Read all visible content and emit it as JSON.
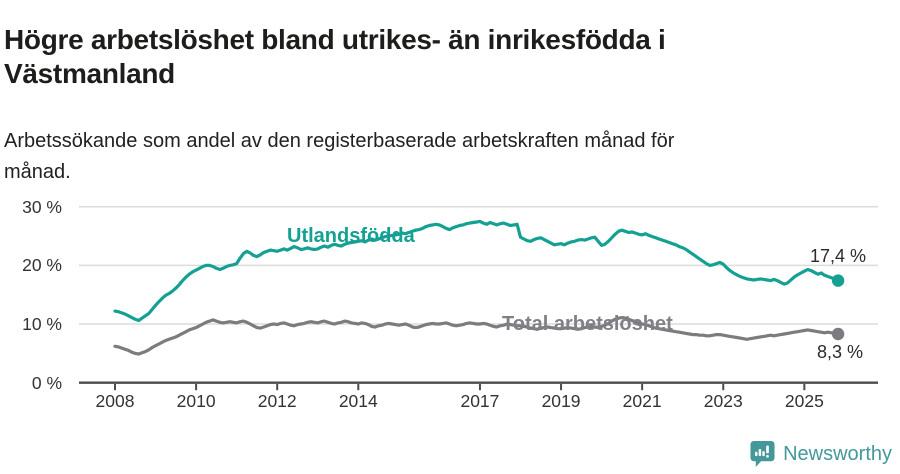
{
  "header": {
    "title_lines": [
      "Högre arbetslöshet bland utrikes- än inrikesfödda i",
      "Västmanland"
    ],
    "subtitle_lines": [
      "Arbetssökande som andel av den registerbaserade arbetskraften månad för",
      "månad."
    ]
  },
  "footer": {
    "brand": "Newsworthy",
    "brand_color": "#44989b"
  },
  "chart_data": {
    "type": "line",
    "title": "Högre arbetslöshet bland utrikes- än inrikesfödda i Västmanland",
    "subtitle": "Arbetssökande som andel av den registerbaserade arbetskraften månad för månad.",
    "unit": "%",
    "frequency": "monthly",
    "x_start_year": 2008,
    "x_start": "2008-01",
    "x_end": "2025-11",
    "ylim": [
      0,
      30
    ],
    "grid": "horizontal",
    "gridline_color": "#dcdcdc",
    "axis_color": "#4b4b4b",
    "y_gridlines": [
      10,
      20,
      30
    ],
    "y_ticks": [
      {
        "value": 30,
        "label": "30 %"
      },
      {
        "value": 20,
        "label": "20 %"
      },
      {
        "value": 10,
        "label": "10 %"
      },
      {
        "value": 0,
        "label": "0 %"
      }
    ],
    "x_ticks": [
      {
        "year": 2008,
        "label": "2008"
      },
      {
        "year": 2010,
        "label": "2010"
      },
      {
        "year": 2012,
        "label": "2012"
      },
      {
        "year": 2014,
        "label": "2014"
      },
      {
        "year": 2017,
        "label": "2017"
      },
      {
        "year": 2019,
        "label": "2019"
      },
      {
        "year": 2021,
        "label": "2021"
      },
      {
        "year": 2023,
        "label": "2023"
      },
      {
        "year": 2025,
        "label": "2025"
      }
    ],
    "legend_position": "inline-labels",
    "series": [
      {
        "id": "utlandsfodda",
        "name": "Utlandsfödda",
        "color": "#14a092",
        "label_color": "#14a092",
        "end_label": "17,4 %",
        "end_value": 17.4,
        "values": [
          12.2,
          12.1,
          11.9,
          11.7,
          11.4,
          11.1,
          10.8,
          10.6,
          11.0,
          11.4,
          11.8,
          12.5,
          13.2,
          13.8,
          14.4,
          14.9,
          15.2,
          15.6,
          16.1,
          16.7,
          17.4,
          18.0,
          18.5,
          18.9,
          19.2,
          19.5,
          19.8,
          20.0,
          20.0,
          19.8,
          19.5,
          19.3,
          19.5,
          19.8,
          20.0,
          20.1,
          20.3,
          21.2,
          22.0,
          22.4,
          22.1,
          21.7,
          21.5,
          21.8,
          22.2,
          22.4,
          22.6,
          22.5,
          22.4,
          22.6,
          22.8,
          22.6,
          22.9,
          23.2,
          23.0,
          22.7,
          22.8,
          23.0,
          22.8,
          22.7,
          22.8,
          23.1,
          23.3,
          23.1,
          23.4,
          23.6,
          23.4,
          23.3,
          23.6,
          23.8,
          23.9,
          24.0,
          24.1,
          24.2,
          24.0,
          24.3,
          24.5,
          24.3,
          24.5,
          24.7,
          24.9,
          25.0,
          25.1,
          25.2,
          25.3,
          25.5,
          25.4,
          25.6,
          25.8,
          26.0,
          26.1,
          26.3,
          26.6,
          26.8,
          26.9,
          27.0,
          26.9,
          26.6,
          26.3,
          26.1,
          26.4,
          26.6,
          26.8,
          26.9,
          27.1,
          27.2,
          27.3,
          27.4,
          27.5,
          27.2,
          27.0,
          27.3,
          27.1,
          26.9,
          27.1,
          27.2,
          27.0,
          26.8,
          26.9,
          27.0,
          24.8,
          24.5,
          24.2,
          24.1,
          24.4,
          24.6,
          24.7,
          24.4,
          24.1,
          23.8,
          23.5,
          23.6,
          23.7,
          23.5,
          23.8,
          24.0,
          24.1,
          24.3,
          24.4,
          24.3,
          24.5,
          24.7,
          24.8,
          24.1,
          23.4,
          23.6,
          24.1,
          24.7,
          25.3,
          25.8,
          26.0,
          25.8,
          25.6,
          25.7,
          25.5,
          25.3,
          25.2,
          25.4,
          25.1,
          24.9,
          24.7,
          24.5,
          24.3,
          24.1,
          23.9,
          23.7,
          23.5,
          23.2,
          23.0,
          22.7,
          22.3,
          21.9,
          21.5,
          21.1,
          20.7,
          20.3,
          20.0,
          20.1,
          20.3,
          20.5,
          20.2,
          19.6,
          19.1,
          18.7,
          18.4,
          18.1,
          17.9,
          17.7,
          17.6,
          17.5,
          17.6,
          17.7,
          17.6,
          17.5,
          17.4,
          17.6,
          17.4,
          17.1,
          16.8,
          17.0,
          17.5,
          18.0,
          18.4,
          18.7,
          19.0,
          19.3,
          19.1,
          18.8,
          18.5,
          18.7,
          18.3,
          18.1,
          17.9,
          17.6,
          17.4
        ]
      },
      {
        "id": "total",
        "name": "Total arbetslöshet",
        "color": "#7b7b80",
        "label_color": "#808086",
        "end_label": "8,3 %",
        "end_value": 8.3,
        "values": [
          6.2,
          6.1,
          5.9,
          5.7,
          5.5,
          5.2,
          5.0,
          4.9,
          5.1,
          5.3,
          5.6,
          6.0,
          6.3,
          6.6,
          6.9,
          7.2,
          7.4,
          7.6,
          7.8,
          8.1,
          8.4,
          8.7,
          9.0,
          9.2,
          9.4,
          9.7,
          10.0,
          10.3,
          10.5,
          10.7,
          10.5,
          10.3,
          10.2,
          10.3,
          10.4,
          10.3,
          10.2,
          10.4,
          10.5,
          10.3,
          10.0,
          9.7,
          9.4,
          9.3,
          9.5,
          9.7,
          9.9,
          10.0,
          9.9,
          10.1,
          10.2,
          10.0,
          9.8,
          9.7,
          9.9,
          10.0,
          10.1,
          10.3,
          10.4,
          10.3,
          10.2,
          10.4,
          10.5,
          10.3,
          10.1,
          10.0,
          10.2,
          10.3,
          10.5,
          10.4,
          10.2,
          10.1,
          10.0,
          10.2,
          10.1,
          9.9,
          9.6,
          9.5,
          9.7,
          9.8,
          10.0,
          10.1,
          10.0,
          9.9,
          9.8,
          9.9,
          10.0,
          9.8,
          9.5,
          9.4,
          9.5,
          9.7,
          9.9,
          10.0,
          10.1,
          10.0,
          10.0,
          10.1,
          10.2,
          10.0,
          9.8,
          9.7,
          9.8,
          9.9,
          10.1,
          10.2,
          10.1,
          10.0,
          10.0,
          10.1,
          10.0,
          9.8,
          9.6,
          9.5,
          9.7,
          9.8,
          10.0,
          9.9,
          9.8,
          9.7,
          9.7,
          9.6,
          9.5,
          9.3,
          9.2,
          9.1,
          9.3,
          9.4,
          9.5,
          9.4,
          9.3,
          9.2,
          9.2,
          9.3,
          9.4,
          9.3,
          9.2,
          9.1,
          9.2,
          9.4,
          9.5,
          9.6,
          9.5,
          9.4,
          9.6,
          9.8,
          10.1,
          10.5,
          10.8,
          11.0,
          11.1,
          11.0,
          10.8,
          10.6,
          10.4,
          10.2,
          10.0,
          9.9,
          9.7,
          9.5,
          9.3,
          9.2,
          9.1,
          9.0,
          8.9,
          8.8,
          8.7,
          8.6,
          8.5,
          8.4,
          8.3,
          8.2,
          8.2,
          8.1,
          8.1,
          8.0,
          8.0,
          8.1,
          8.2,
          8.2,
          8.1,
          8.0,
          7.9,
          7.8,
          7.7,
          7.6,
          7.5,
          7.4,
          7.5,
          7.6,
          7.7,
          7.8,
          7.9,
          8.0,
          8.1,
          8.0,
          8.1,
          8.2,
          8.3,
          8.4,
          8.5,
          8.6,
          8.7,
          8.8,
          8.9,
          9.0,
          8.9,
          8.8,
          8.7,
          8.6,
          8.5,
          8.6,
          8.5,
          8.4,
          8.3
        ]
      }
    ]
  }
}
